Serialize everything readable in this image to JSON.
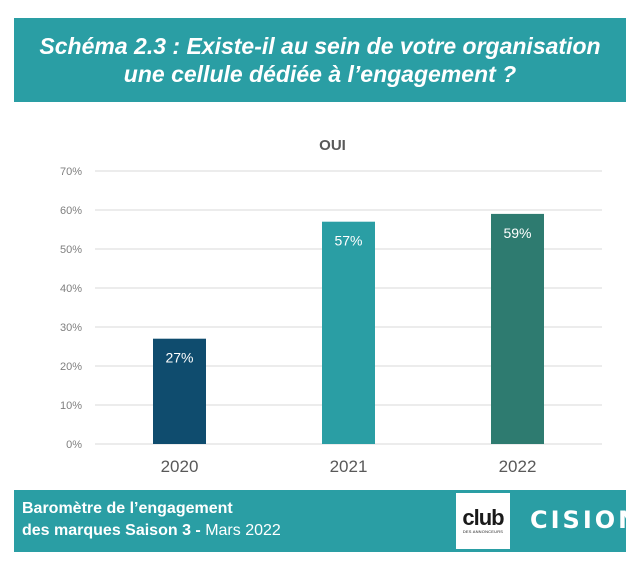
{
  "header": {
    "title_line1": "Schéma 2.3 : Existe-il au sein de votre organisation",
    "title_line2": "une cellule dédiée à l’engagement ?"
  },
  "chart_data": {
    "type": "bar",
    "title": "OUI",
    "categories": [
      "2020",
      "2021",
      "2022"
    ],
    "values": [
      27,
      57,
      59
    ],
    "data_labels": [
      "27%",
      "57%",
      "59%"
    ],
    "bar_colors": [
      "#0f4c6e",
      "#2a9ea4",
      "#2e7b70"
    ],
    "ylim": [
      0,
      70
    ],
    "yticks": [
      0,
      10,
      20,
      30,
      40,
      50,
      60,
      70
    ],
    "ytick_labels": [
      "0%",
      "10%",
      "20%",
      "30%",
      "40%",
      "50%",
      "60%",
      "70%"
    ],
    "grid": true,
    "xlabel": "",
    "ylabel": ""
  },
  "footer": {
    "line1": "Baromètre de l’engagement",
    "line2_bold": "des marques Saison 3 - ",
    "line2_regular": "Mars 2022",
    "club_logo_word": "club",
    "club_logo_sub": "DES ANNONCEURS",
    "cision_logo": "CISION"
  },
  "colors": {
    "banner": "#2a9ea4",
    "grid": "#d9d9d9",
    "axis_text": "#7f7f7f"
  }
}
